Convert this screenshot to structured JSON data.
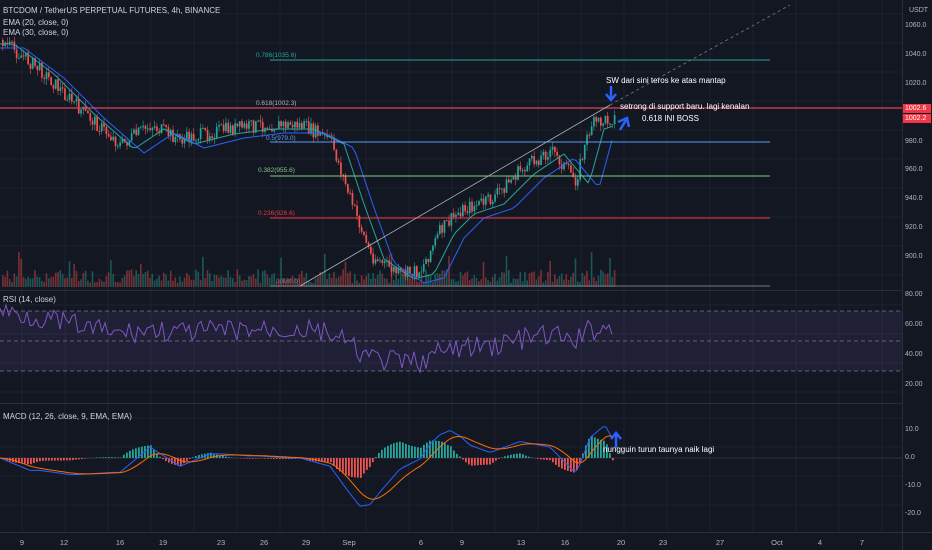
{
  "symbol_header": "BTCDOM / TetherUS PERPETUAL FUTURES, 4h, BINANCE",
  "indicators_header": [
    "EMA (20, close, 0)",
    "EMA (30, close, 0)"
  ],
  "currency": "USDT",
  "price_ticks": [
    "1060.0",
    "1040.0",
    "1020.0",
    "980.0",
    "960.0",
    "940.0",
    "920.0",
    "900.0"
  ],
  "price_tags": [
    {
      "label": "1002.6",
      "color": "#f23645"
    },
    {
      "label": "1002.2",
      "color": "#f23645"
    }
  ],
  "fib_levels": [
    {
      "label": "0.786(1035.6)",
      "color": "#26a69a"
    },
    {
      "label": "0.618(1002.3)",
      "color": "#787b86"
    },
    {
      "label": "0.5(979.0)",
      "color": "#5b9cf6"
    },
    {
      "label": "0.382(955.6)",
      "color": "#81c784"
    },
    {
      "label": "0.236(926.6)",
      "color": "#f23645"
    },
    {
      "label": "0(880.0)",
      "color": "#787b86"
    }
  ],
  "annotations": {
    "note1": "SW dari sini teros ke atas mantap",
    "note2": "setrong di support baru. lagi kenalan",
    "note3": "0.618 INI BOSS",
    "note4": "nungguin turun taunya naik lagi"
  },
  "rsi": {
    "title": "RSI (14, close)",
    "ticks": [
      "80.00",
      "60.00",
      "40.00",
      "20.00"
    ]
  },
  "macd": {
    "title": "MACD (12, 26, close, 9, EMA, EMA)",
    "ticks": [
      "10.0",
      "0.0",
      "-10.0",
      "-20.0"
    ]
  },
  "x_ticks": [
    "9",
    "12",
    "16",
    "19",
    "23",
    "26",
    "29",
    "Sep",
    "6",
    "9",
    "13",
    "16",
    "20",
    "23",
    "27",
    "Oct",
    "4",
    "7"
  ],
  "colors": {
    "up": "#26a69a",
    "down": "#ef5350",
    "ema20": "#26a69a",
    "ema30": "#2962ff",
    "rsi": "#7e57c2",
    "macd": "#2962ff",
    "signal": "#ff6d00"
  }
}
